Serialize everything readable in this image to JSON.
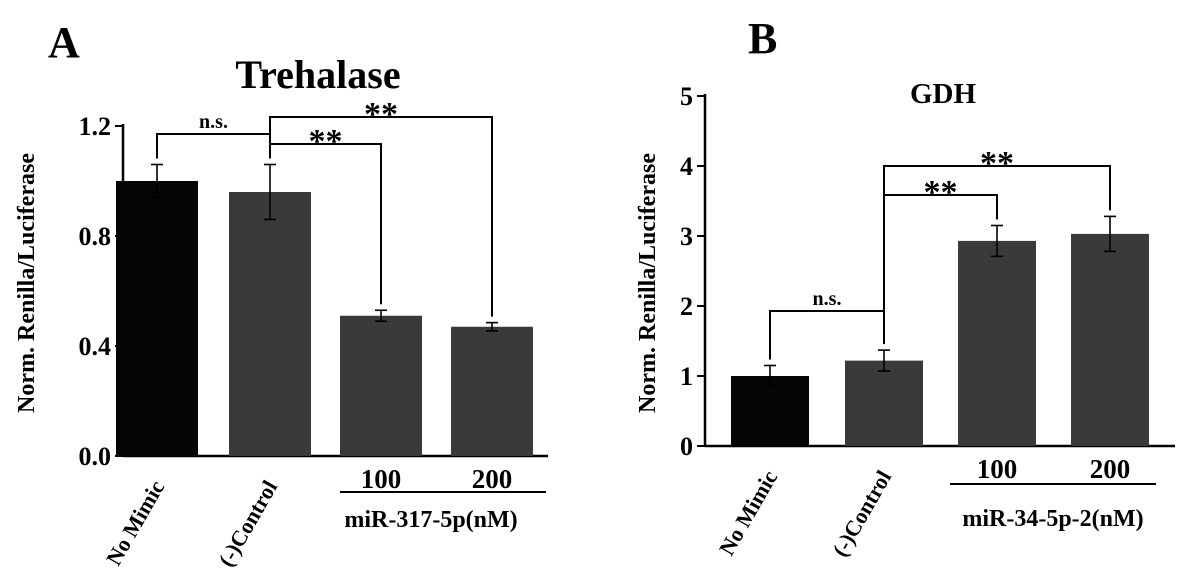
{
  "chart_data": [
    {
      "panel_label": "A",
      "type": "bar",
      "title": "Trehalase",
      "ylabel": "Norm. Renilla/Luciferase",
      "ylim": [
        0,
        1.2
      ],
      "yticks": [
        "0.0",
        "0.4",
        "0.8",
        "1.2"
      ],
      "ytick_values": [
        0,
        0.4,
        0.8,
        1.2
      ],
      "categories": [
        "No Mimic",
        "(-)Control",
        "100",
        "200"
      ],
      "group_label": "miR-317-5p(nM)",
      "values": [
        1.0,
        0.96,
        0.51,
        0.47
      ],
      "errors": [
        0.06,
        0.1,
        0.02,
        0.015
      ],
      "colors": [
        "#050505",
        "#3a3a3a",
        "#3a3a3a",
        "#3a3a3a"
      ],
      "annotations": [
        {
          "text": "n.s.",
          "from": 0,
          "to": 1
        },
        {
          "text": "**",
          "from": 1,
          "to": 2
        },
        {
          "text": "**",
          "from": 1,
          "to": 3
        }
      ]
    },
    {
      "panel_label": "B",
      "type": "bar",
      "title": "GDH",
      "ylabel": "Norm. Renilla/Luciferase",
      "ylim": [
        0,
        5
      ],
      "yticks": [
        "0",
        "1",
        "2",
        "3",
        "4",
        "5"
      ],
      "ytick_values": [
        0,
        1,
        2,
        3,
        4,
        5
      ],
      "categories": [
        "No Mimic",
        "(-)Control",
        "100",
        "200"
      ],
      "group_label": "miR-34-5p-2(nM)",
      "values": [
        1.0,
        1.22,
        2.93,
        3.03
      ],
      "errors": [
        0.15,
        0.15,
        0.22,
        0.25
      ],
      "colors": [
        "#050505",
        "#3a3a3a",
        "#3a3a3a",
        "#3a3a3a"
      ],
      "annotations": [
        {
          "text": "n.s.",
          "from": 0,
          "to": 1
        },
        {
          "text": "**",
          "from": 1,
          "to": 2
        },
        {
          "text": "**",
          "from": 1,
          "to": 3
        }
      ]
    }
  ]
}
